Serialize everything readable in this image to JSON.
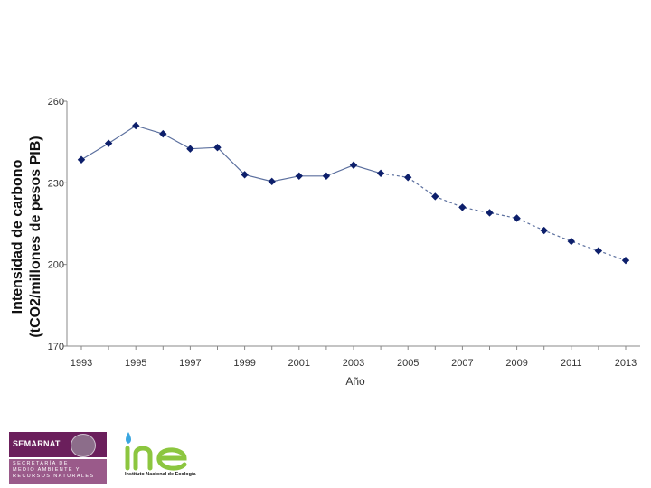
{
  "chart_data": {
    "type": "line",
    "title": "",
    "ylabel_line1": "Intensidad de carbono",
    "ylabel_line2": "(tCO2/millones de pesos PIB)",
    "xlabel": "Año",
    "ylim": [
      170,
      260
    ],
    "yticks": [
      "170",
      "200",
      "230",
      "260"
    ],
    "xticks": [
      "1993",
      "1995",
      "1997",
      "1999",
      "2001",
      "2003",
      "2005",
      "2007",
      "2009",
      "2011",
      "2013"
    ],
    "grid": false,
    "legend": "none",
    "series": [
      {
        "x": [
          1993,
          1994,
          1995,
          1996,
          1997,
          1998,
          1999,
          2000,
          2001,
          2002,
          2003,
          2004,
          2005,
          2006,
          2007,
          2008,
          2009,
          2010,
          2011,
          2012,
          2013
        ],
        "y": [
          238.5,
          244.5,
          251,
          248,
          242.5,
          243,
          233,
          230.5,
          232.5,
          232.5,
          236.5,
          233.5,
          232,
          225,
          221,
          219,
          217,
          212.5,
          208.5,
          205,
          201.5
        ],
        "color": "#0d1f6b",
        "projected_from_x": 2004
      }
    ]
  },
  "logos": {
    "semarnat": {
      "name": "SEMARNAT",
      "line1": "SECRETARÍA DE",
      "line2": "MEDIO AMBIENTE Y",
      "line3": "RECURSOS NATURALES"
    },
    "ine": {
      "name": "Instituto Nacional de Ecología"
    }
  }
}
